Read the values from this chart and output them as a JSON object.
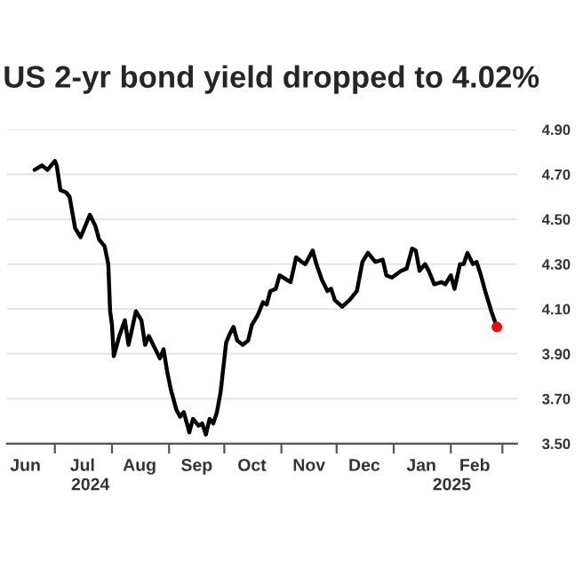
{
  "chart_data": {
    "type": "line",
    "title": "US 2-yr bond yield dropped to 4.02%",
    "series": [
      {
        "color": "#000000",
        "x": [
          "2024-06-20",
          "2024-06-24",
          "2024-06-27",
          "2024-07-01",
          "2024-07-02",
          "2024-07-04",
          "2024-07-07",
          "2024-07-09",
          "2024-07-12",
          "2024-07-15",
          "2024-07-20",
          "2024-07-23",
          "2024-07-25",
          "2024-07-28",
          "2024-07-30",
          "2024-07-31",
          "2024-08-01",
          "2024-08-02",
          "2024-08-04",
          "2024-08-05",
          "2024-08-08",
          "2024-08-10",
          "2024-08-14",
          "2024-08-17",
          "2024-08-19",
          "2024-08-21",
          "2024-08-24",
          "2024-08-27",
          "2024-08-29",
          "2024-08-31",
          "2024-09-02",
          "2024-09-05",
          "2024-09-07",
          "2024-09-09",
          "2024-09-12",
          "2024-09-14",
          "2024-09-17",
          "2024-09-19",
          "2024-09-21",
          "2024-09-23",
          "2024-09-25",
          "2024-09-27",
          "2024-09-29",
          "2024-10-02",
          "2024-10-04",
          "2024-10-06",
          "2024-10-08",
          "2024-10-11",
          "2024-10-14",
          "2024-10-16",
          "2024-10-19",
          "2024-10-22",
          "2024-10-24",
          "2024-10-26",
          "2024-10-29",
          "2024-10-31",
          "2024-11-06",
          "2024-11-09",
          "2024-11-12",
          "2024-11-14",
          "2024-11-18",
          "2024-11-20",
          "2024-11-23",
          "2024-11-26",
          "2024-11-28",
          "2024-11-30",
          "2024-12-04",
          "2024-12-08",
          "2024-12-12",
          "2024-12-15",
          "2024-12-18",
          "2024-12-22",
          "2024-12-26",
          "2024-12-28",
          "2024-12-31",
          "2025-01-05",
          "2025-01-08",
          "2025-01-11",
          "2025-01-13",
          "2025-01-15",
          "2025-01-18",
          "2025-01-20",
          "2025-01-23",
          "2025-01-27",
          "2025-01-29",
          "2025-02-01",
          "2025-02-03",
          "2025-02-06",
          "2025-02-08",
          "2025-02-10",
          "2025-02-13",
          "2025-02-15",
          "2025-02-17",
          "2025-02-20",
          "2025-02-23",
          "2025-02-26"
        ],
        "values": [
          4.72,
          4.74,
          4.72,
          4.76,
          4.74,
          4.63,
          4.62,
          4.6,
          4.46,
          4.42,
          4.52,
          4.47,
          4.41,
          4.38,
          4.3,
          4.09,
          4.03,
          3.89,
          3.95,
          3.98,
          4.05,
          3.94,
          4.09,
          4.05,
          3.94,
          3.98,
          3.93,
          3.88,
          3.92,
          3.82,
          3.74,
          3.65,
          3.62,
          3.64,
          3.55,
          3.61,
          3.58,
          3.59,
          3.54,
          3.61,
          3.59,
          3.64,
          3.73,
          3.95,
          3.99,
          4.02,
          3.96,
          3.94,
          3.96,
          4.03,
          4.07,
          4.13,
          4.12,
          4.18,
          4.19,
          4.25,
          4.22,
          4.33,
          4.31,
          4.3,
          4.36,
          4.3,
          4.23,
          4.18,
          4.19,
          4.14,
          4.11,
          4.14,
          4.18,
          4.31,
          4.35,
          4.31,
          4.32,
          4.25,
          4.24,
          4.27,
          4.28,
          4.37,
          4.36,
          4.27,
          4.3,
          4.27,
          4.21,
          4.22,
          4.21,
          4.25,
          4.19,
          4.3,
          4.3,
          4.35,
          4.3,
          4.31,
          4.26,
          4.17,
          4.09,
          4.02
        ]
      },
      {
        "type": "scatter",
        "color": "#ff0000",
        "x": [
          "2025-02-26"
        ],
        "values": [
          4.02
        ]
      }
    ],
    "xlim": [
      "2024-06-05",
      "2025-03-09"
    ],
    "xticks": [
      {
        "value": "2024-06-15",
        "label": "Jun"
      },
      {
        "value": "2024-07-01",
        "label": null
      },
      {
        "value": "2024-07-16",
        "label": "Jul"
      },
      {
        "value": "2024-08-01",
        "label": null
      },
      {
        "value": "2024-08-16",
        "label": "Aug"
      },
      {
        "value": "2024-09-01",
        "label": null
      },
      {
        "value": "2024-09-16",
        "label": "Sep"
      },
      {
        "value": "2024-10-01",
        "label": null
      },
      {
        "value": "2024-10-16",
        "label": "Oct"
      },
      {
        "value": "2024-11-01",
        "label": null
      },
      {
        "value": "2024-11-16",
        "label": "Nov"
      },
      {
        "value": "2024-12-01",
        "label": null
      },
      {
        "value": "2024-12-16",
        "label": "Dec"
      },
      {
        "value": "2025-01-01",
        "label": null
      },
      {
        "value": "2025-01-16",
        "label": "Jan"
      },
      {
        "value": "2025-02-01",
        "label": null
      },
      {
        "value": "2025-02-14",
        "label": "Feb"
      },
      {
        "value": "2025-03-01",
        "label": null
      }
    ],
    "ylim": [
      3.5,
      4.9
    ],
    "yticks": [
      {
        "value": 3.5,
        "label": "3.50"
      },
      {
        "value": 3.7,
        "label": "3.70"
      },
      {
        "value": 3.9,
        "label": "3.90"
      },
      {
        "value": 4.1,
        "label": "4.10"
      },
      {
        "value": 4.3,
        "label": "4.30"
      },
      {
        "value": 4.5,
        "label": "4.50"
      },
      {
        "value": 4.7,
        "label": "4.70"
      },
      {
        "value": 4.9,
        "label": "4.90"
      }
    ],
    "annotations": [
      "2024",
      "2025"
    ],
    "grid": "y"
  }
}
